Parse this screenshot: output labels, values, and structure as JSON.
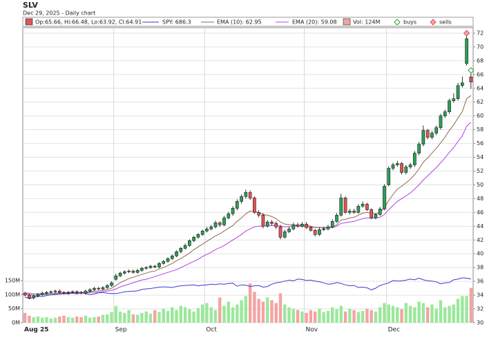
{
  "chart_data": {
    "type": "candlestick",
    "title": "SLV",
    "subtitle": "Dec 29, 2025 - Daily chart",
    "legend": {
      "ohlc": "Op:65.66, Hi:66.48, Lo:63.92, Cl:64.91",
      "spy": "SPY: 686.3",
      "ema10": "EMA (10): 62.95",
      "ema20": "EMA (20): 59.08",
      "vol": "Vol: 124M",
      "buys": "buys",
      "sells": "sells"
    },
    "categories": [
      "Aug 25",
      null,
      null,
      null,
      null,
      null,
      null,
      null,
      null,
      null,
      null,
      null,
      null,
      null,
      null,
      null,
      null,
      null,
      null,
      null,
      null,
      "Sep",
      null,
      null,
      null,
      null,
      null,
      null,
      null,
      null,
      null,
      null,
      null,
      null,
      null,
      null,
      null,
      null,
      null,
      null,
      null,
      null,
      "Oct",
      null,
      null,
      null,
      null,
      null,
      null,
      null,
      null,
      null,
      null,
      null,
      null,
      null,
      null,
      null,
      null,
      null,
      null,
      null,
      null,
      null,
      null,
      "Nov",
      null,
      null,
      null,
      null,
      null,
      null,
      null,
      null,
      null,
      null,
      null,
      null,
      null,
      null,
      null,
      null,
      null,
      null,
      "Dec",
      null,
      null,
      null,
      null,
      null,
      null,
      null,
      null,
      null,
      null,
      null,
      null,
      null,
      null,
      null,
      null,
      null,
      null,
      null
    ],
    "open": [
      34.3,
      34.0,
      33.6,
      33.9,
      34.1,
      34.3,
      34.4,
      34.5,
      34.6,
      34.4,
      34.3,
      34.4,
      34.5,
      34.4,
      34.3,
      34.6,
      34.8,
      35.0,
      34.9,
      35.1,
      35.4,
      36.3,
      36.8,
      37.2,
      37.4,
      37.5,
      37.3,
      37.6,
      37.9,
      38.0,
      38.2,
      38.1,
      38.6,
      38.9,
      39.3,
      39.7,
      40.3,
      40.8,
      41.2,
      41.9,
      42.4,
      42.8,
      43.3,
      43.6,
      43.9,
      44.5,
      44.2,
      45.2,
      45.8,
      46.6,
      47.6,
      48.3,
      48.9,
      48.1,
      46.0,
      45.6,
      44.0,
      44.6,
      44.4,
      43.9,
      42.4,
      43.2,
      43.6,
      44.2,
      44.0,
      44.3,
      43.8,
      43.4,
      42.8,
      43.5,
      43.6,
      43.9,
      44.7,
      45.6,
      48.1,
      46.0,
      46.2,
      46.0,
      46.9,
      47.2,
      46.4,
      45.2,
      45.7,
      46.5,
      50.0,
      52.4,
      52.9,
      53.1,
      51.8,
      52.6,
      52.9,
      54.6,
      55.9,
      57.9,
      56.9,
      57.5,
      58.3,
      60.0,
      60.6,
      62.2,
      62.5,
      64.4,
      67.6,
      65.66
    ],
    "high": [
      34.5,
      34.2,
      34.1,
      34.3,
      34.5,
      34.6,
      34.7,
      34.8,
      34.8,
      34.6,
      34.6,
      34.7,
      34.7,
      34.6,
      34.8,
      35.0,
      35.2,
      35.2,
      35.3,
      35.6,
      36.0,
      37.1,
      37.4,
      37.6,
      37.7,
      37.7,
      37.8,
      38.1,
      38.2,
      38.4,
      38.4,
      38.8,
      39.1,
      39.5,
      39.9,
      40.5,
      41.0,
      41.5,
      42.1,
      42.6,
      43.0,
      43.5,
      43.9,
      44.2,
      44.8,
      44.7,
      45.5,
      46.1,
      46.9,
      47.9,
      48.6,
      49.3,
      49.2,
      48.3,
      46.3,
      45.9,
      44.9,
      44.9,
      44.7,
      44.2,
      43.5,
      43.9,
      44.5,
      44.5,
      44.6,
      44.6,
      44.0,
      43.6,
      43.8,
      43.9,
      44.2,
      45.0,
      45.9,
      48.7,
      48.3,
      46.5,
      46.5,
      47.2,
      47.6,
      47.4,
      46.6,
      45.9,
      46.8,
      50.1,
      52.7,
      53.2,
      53.5,
      53.3,
      52.9,
      53.2,
      54.9,
      56.2,
      58.6,
      58.1,
      57.8,
      58.6,
      60.3,
      60.9,
      62.5,
      63.3,
      64.8,
      65.7,
      71.6,
      66.48
    ],
    "low": [
      33.8,
      33.4,
      33.4,
      33.7,
      33.9,
      34.1,
      34.2,
      34.3,
      34.2,
      34.1,
      34.1,
      34.2,
      34.2,
      34.1,
      34.1,
      34.4,
      34.6,
      34.7,
      34.7,
      34.9,
      35.2,
      36.1,
      36.6,
      37.0,
      37.2,
      37.1,
      37.1,
      37.4,
      37.7,
      37.8,
      37.9,
      37.9,
      38.4,
      38.7,
      39.1,
      39.5,
      40.1,
      40.6,
      41.0,
      41.7,
      42.2,
      42.6,
      43.1,
      43.4,
      43.7,
      43.9,
      44.0,
      45.0,
      45.5,
      46.3,
      47.3,
      48.0,
      47.8,
      45.8,
      45.3,
      43.7,
      43.8,
      44.1,
      43.6,
      42.1,
      42.2,
      43.0,
      43.4,
      43.8,
      43.8,
      43.6,
      43.2,
      42.5,
      42.6,
      43.3,
      43.4,
      43.7,
      44.5,
      45.4,
      45.8,
      45.7,
      45.8,
      45.8,
      46.7,
      46.2,
      45.0,
      45.0,
      45.5,
      46.3,
      49.8,
      52.1,
      52.6,
      51.5,
      51.5,
      52.3,
      52.6,
      54.3,
      55.6,
      56.6,
      56.6,
      57.2,
      58.0,
      59.7,
      60.3,
      61.9,
      62.2,
      64.1,
      67.3,
      63.92
    ],
    "close": [
      34.0,
      33.6,
      33.9,
      34.1,
      34.3,
      34.4,
      34.5,
      34.6,
      34.4,
      34.3,
      34.4,
      34.5,
      34.4,
      34.3,
      34.6,
      34.8,
      35.0,
      34.9,
      35.1,
      35.4,
      35.8,
      36.8,
      37.2,
      37.4,
      37.5,
      37.3,
      37.6,
      37.9,
      38.0,
      38.2,
      38.1,
      38.6,
      38.9,
      39.3,
      39.7,
      40.3,
      40.8,
      41.2,
      41.9,
      42.4,
      42.8,
      43.3,
      43.6,
      43.9,
      44.5,
      44.2,
      45.2,
      45.8,
      46.6,
      47.6,
      48.3,
      48.9,
      48.1,
      46.0,
      45.6,
      44.0,
      44.6,
      44.4,
      43.9,
      42.4,
      43.2,
      43.6,
      44.2,
      44.0,
      44.3,
      43.8,
      43.4,
      42.8,
      43.5,
      43.6,
      43.9,
      44.7,
      45.6,
      48.1,
      46.0,
      46.2,
      46.0,
      46.9,
      47.2,
      46.4,
      45.2,
      45.7,
      46.5,
      49.8,
      52.4,
      52.9,
      53.1,
      51.8,
      52.6,
      52.9,
      54.6,
      55.9,
      57.9,
      56.9,
      57.5,
      58.3,
      60.0,
      60.6,
      62.2,
      62.5,
      64.4,
      64.8,
      71.2,
      64.91
    ],
    "volume": [
      35,
      25,
      20,
      22,
      18,
      20,
      15,
      18,
      22,
      25,
      20,
      18,
      22,
      20,
      25,
      18,
      20,
      22,
      28,
      30,
      38,
      60,
      40,
      35,
      45,
      30,
      28,
      35,
      40,
      32,
      45,
      38,
      50,
      42,
      55,
      45,
      60,
      55,
      48,
      40,
      52,
      65,
      70,
      55,
      45,
      90,
      60,
      75,
      55,
      65,
      80,
      95,
      140,
      110,
      85,
      75,
      90,
      80,
      70,
      105,
      65,
      55,
      50,
      45,
      40,
      35,
      45,
      40,
      50,
      38,
      42,
      55,
      48,
      60,
      40,
      50,
      45,
      38,
      42,
      50,
      45,
      40,
      55,
      70,
      65,
      60,
      55,
      48,
      70,
      60,
      55,
      75,
      70,
      55,
      65,
      50,
      80,
      55,
      60,
      65,
      85,
      95,
      95,
      124
    ],
    "ema10": [
      34.2,
      34.1,
      34.0,
      34.0,
      34.1,
      34.1,
      34.2,
      34.3,
      34.3,
      34.3,
      34.4,
      34.4,
      34.4,
      34.4,
      34.4,
      34.5,
      34.6,
      34.6,
      34.7,
      34.8,
      35.0,
      35.4,
      35.8,
      36.1,
      36.4,
      36.6,
      36.8,
      37.0,
      37.2,
      37.4,
      37.5,
      37.8,
      38.0,
      38.3,
      38.6,
      39.0,
      39.3,
      39.7,
      40.1,
      40.6,
      41.0,
      41.4,
      41.8,
      42.2,
      42.6,
      42.9,
      43.3,
      43.7,
      44.1,
      44.7,
      45.2,
      45.8,
      46.2,
      46.1,
      46.0,
      45.7,
      45.6,
      45.4,
      45.1,
      44.6,
      44.3,
      44.2,
      44.2,
      44.1,
      44.1,
      44.1,
      44.0,
      43.8,
      43.8,
      43.7,
      43.8,
      43.9,
      44.2,
      44.9,
      45.0,
      45.2,
      45.3,
      45.6,
      45.9,
      46.0,
      45.9,
      45.8,
      46.0,
      46.7,
      47.7,
      48.6,
      49.4,
      49.8,
      50.3,
      50.8,
      51.5,
      52.3,
      53.3,
      53.9,
      54.6,
      55.3,
      56.1,
      56.9,
      57.9,
      58.7,
      59.7,
      60.6,
      62.5,
      62.95
    ],
    "ema20": [
      34.3,
      34.3,
      34.2,
      34.2,
      34.2,
      34.2,
      34.2,
      34.2,
      34.3,
      34.3,
      34.3,
      34.3,
      34.3,
      34.3,
      34.3,
      34.4,
      34.4,
      34.4,
      34.5,
      34.6,
      34.7,
      34.9,
      35.2,
      35.4,
      35.6,
      35.8,
      36.0,
      36.2,
      36.3,
      36.5,
      36.7,
      36.9,
      37.1,
      37.3,
      37.5,
      37.7,
      38.0,
      38.3,
      38.6,
      38.9,
      39.2,
      39.6,
      39.9,
      40.2,
      40.6,
      40.9,
      41.2,
      41.6,
      42.0,
      42.4,
      42.8,
      43.3,
      43.6,
      43.9,
      44.0,
      44.0,
      44.1,
      44.1,
      44.1,
      44.0,
      43.9,
      43.9,
      44.0,
      44.0,
      44.0,
      44.0,
      43.9,
      43.8,
      43.8,
      43.8,
      43.8,
      43.8,
      44.0,
      44.4,
      44.5,
      44.6,
      44.7,
      44.9,
      45.1,
      45.2,
      45.2,
      45.2,
      45.3,
      45.7,
      46.4,
      47.0,
      47.6,
      48.0,
      48.4,
      48.8,
      49.4,
      50.0,
      50.7,
      51.3,
      51.9,
      52.5,
      53.2,
      53.9,
      54.7,
      55.4,
      56.3,
      57.1,
      58.5,
      59.08
    ],
    "spy": [
      632,
      628,
      631,
      635,
      634,
      637,
      639,
      640,
      641,
      643,
      642,
      644,
      642,
      645,
      643,
      640,
      642,
      645,
      646,
      644,
      643,
      643,
      645,
      648,
      649,
      650,
      651,
      655,
      657,
      658,
      660,
      662,
      663,
      662,
      661,
      664,
      666,
      667,
      668,
      669,
      666,
      668,
      669,
      671,
      670,
      672,
      671,
      673,
      674,
      665,
      669,
      668,
      664,
      666,
      667,
      662,
      664,
      671,
      675,
      677,
      680,
      683,
      681,
      686,
      685,
      682,
      683,
      680,
      678,
      675,
      671,
      672,
      676,
      673,
      669,
      666,
      667,
      661,
      662,
      660,
      654,
      659,
      667,
      671,
      675,
      682,
      680,
      681,
      683,
      686,
      684,
      689,
      684,
      681,
      680,
      678,
      672,
      675,
      676,
      684,
      686,
      690,
      689,
      686.3
    ],
    "buys": [
      {
        "index": 103,
        "value": 66.6
      }
    ],
    "sells": [
      {
        "index": 102,
        "value": 72
      }
    ],
    "colors": {
      "up": "#2e9e5a",
      "down": "#e05555",
      "vol_up": "#9be89b",
      "vol_down": "#f4a3a3",
      "spy": "#3a3ad0",
      "ema10": "#8b6a4a",
      "ema20": "#b040e8",
      "buys": "#2e9e2e",
      "sells": "#e05555"
    },
    "ylim": [
      30,
      72.8
    ],
    "yticks": [
      30,
      32,
      34,
      36,
      38,
      40,
      42,
      44,
      46,
      48,
      50,
      52,
      54,
      56,
      58,
      60,
      62,
      64,
      66,
      68,
      70,
      72
    ],
    "y2lim": [
      0,
      1050
    ],
    "y2ticks": [
      {
        "value": 0,
        "label": "0M"
      },
      {
        "value": 50,
        "label": "50M"
      },
      {
        "value": 100,
        "label": "100M"
      },
      {
        "value": 150,
        "label": "150M"
      }
    ],
    "grid": true
  }
}
